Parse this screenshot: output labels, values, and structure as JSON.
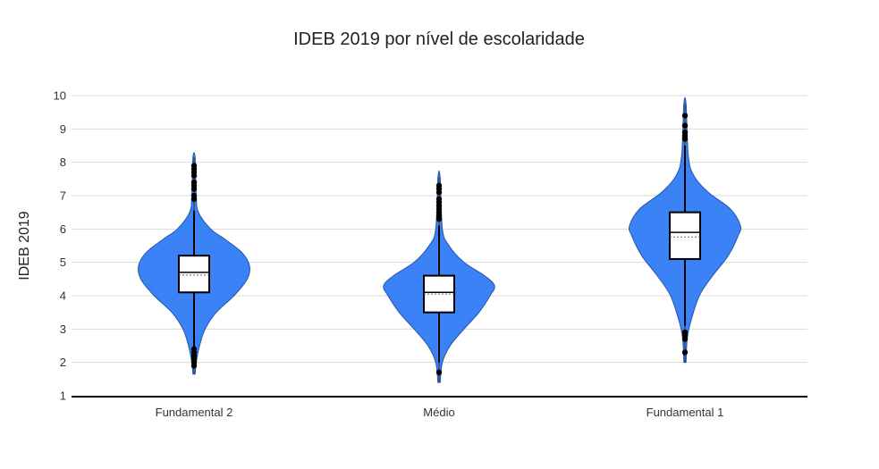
{
  "chart_data": {
    "type": "violin",
    "title": "IDEB 2019 por nível de escolaridade",
    "xlabel": "",
    "ylabel": "IDEB 2019",
    "ylim": [
      1,
      10
    ],
    "yticks": [
      "1",
      "2",
      "3",
      "4",
      "5",
      "6",
      "7",
      "8",
      "9",
      "10"
    ],
    "grid": true,
    "categories": [
      "Fundamental 2",
      "Médio",
      "Fundamental 1"
    ],
    "colors": {
      "violin_fill": "#3b82f6",
      "violin_stroke": "#2455a8",
      "box_fill": "#ffffff",
      "box_stroke": "#000000",
      "grid": "#d9d9d9",
      "axis": "#000000"
    },
    "series": [
      {
        "category": "Fundamental 2",
        "min": 1.65,
        "max": 8.15,
        "q1": 4.1,
        "median": 4.7,
        "q3": 5.2,
        "mean": 4.62,
        "whisker_low": 2.45,
        "whisker_high": 6.55,
        "outliers": [
          1.9,
          2.0,
          2.1,
          2.2,
          2.3,
          2.4,
          6.9,
          7.0,
          7.2,
          7.3,
          7.4,
          7.6,
          7.7,
          7.8,
          7.9
        ],
        "density": [
          [
            1.65,
            0.02
          ],
          [
            2.0,
            0.04
          ],
          [
            2.5,
            0.1
          ],
          [
            3.0,
            0.2
          ],
          [
            3.5,
            0.4
          ],
          [
            4.0,
            0.72
          ],
          [
            4.5,
            0.96
          ],
          [
            4.9,
            1.0
          ],
          [
            5.3,
            0.86
          ],
          [
            5.7,
            0.55
          ],
          [
            6.0,
            0.3
          ],
          [
            6.5,
            0.08
          ],
          [
            7.0,
            0.04
          ],
          [
            8.15,
            0.02
          ]
        ]
      },
      {
        "category": "Médio",
        "min": 1.4,
        "max": 7.55,
        "q1": 3.5,
        "median": 4.1,
        "q3": 4.6,
        "mean": 4.05,
        "whisker_low": 2.0,
        "whisker_high": 6.1,
        "outliers": [
          1.7,
          6.3,
          6.4,
          6.5,
          6.6,
          6.7,
          6.8,
          6.9,
          7.1,
          7.2,
          7.3
        ],
        "density": [
          [
            1.4,
            0.02
          ],
          [
            2.0,
            0.06
          ],
          [
            2.5,
            0.2
          ],
          [
            3.0,
            0.45
          ],
          [
            3.5,
            0.72
          ],
          [
            4.0,
            0.92
          ],
          [
            4.3,
            1.0
          ],
          [
            4.6,
            0.82
          ],
          [
            5.0,
            0.45
          ],
          [
            5.5,
            0.18
          ],
          [
            6.0,
            0.06
          ],
          [
            7.55,
            0.02
          ]
        ]
      },
      {
        "category": "Fundamental 1",
        "min": 2.0,
        "max": 9.75,
        "q1": 5.1,
        "median": 5.9,
        "q3": 6.5,
        "mean": 5.76,
        "whisker_low": 3.1,
        "whisker_high": 8.5,
        "outliers": [
          2.3,
          2.7,
          2.8,
          2.9,
          8.7,
          8.8,
          8.9,
          9.1,
          9.4
        ],
        "density": [
          [
            2.0,
            0.02
          ],
          [
            2.7,
            0.04
          ],
          [
            3.2,
            0.1
          ],
          [
            4.0,
            0.26
          ],
          [
            4.6,
            0.5
          ],
          [
            5.2,
            0.78
          ],
          [
            5.8,
            0.96
          ],
          [
            6.1,
            1.0
          ],
          [
            6.6,
            0.82
          ],
          [
            7.1,
            0.42
          ],
          [
            7.6,
            0.16
          ],
          [
            8.2,
            0.06
          ],
          [
            9.75,
            0.02
          ]
        ]
      }
    ]
  }
}
